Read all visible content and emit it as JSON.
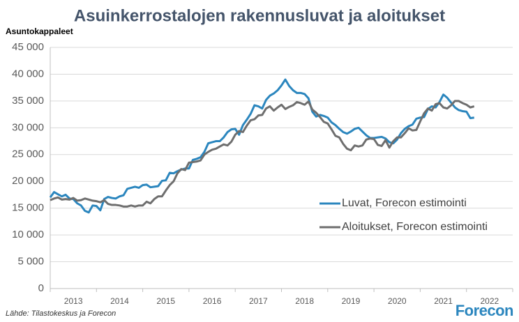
{
  "chart_data": {
    "type": "line",
    "title": "Asuinkerrostalojen rakennusluvat ja aloitukset",
    "y_label": "Asuntokappaleet",
    "source": "Lähde: Tilastokeskus ja Forecon",
    "logo": "Forecon",
    "categories": [
      null,
      null,
      null,
      null,
      null,
      null,
      "2013",
      null,
      null,
      null,
      null,
      null,
      null,
      null,
      null,
      null,
      null,
      null,
      "2014",
      null,
      null,
      null,
      null,
      null,
      null,
      null,
      null,
      null,
      null,
      null,
      "2015",
      null,
      null,
      null,
      null,
      null,
      null,
      null,
      null,
      null,
      null,
      null,
      "2016",
      null,
      null,
      null,
      null,
      null,
      null,
      null,
      null,
      null,
      null,
      null,
      "2017",
      null,
      null,
      null,
      null,
      null,
      null,
      null,
      null,
      null,
      null,
      null,
      "2018",
      null,
      null,
      null,
      null,
      null,
      null,
      null,
      null,
      null,
      null,
      null,
      "2019",
      null,
      null,
      null,
      null,
      null,
      null,
      null,
      null,
      null,
      null,
      null,
      "2020",
      null,
      null,
      null,
      null,
      null,
      null,
      null,
      null,
      null,
      null,
      null,
      "2021",
      null,
      null,
      null,
      null,
      null,
      null,
      null,
      null,
      null,
      null,
      null,
      "2022",
      null,
      null,
      null,
      null,
      null
    ],
    "series": [
      {
        "name": "Luvat, Forecon estimointi",
        "color": "#2b86be",
        "values": [
          17000,
          18000,
          17600,
          17200,
          17500,
          16800,
          16700,
          15900,
          15500,
          14500,
          14200,
          15500,
          15400,
          14600,
          16700,
          17100,
          16900,
          16800,
          17200,
          17400,
          18600,
          18800,
          19000,
          18800,
          19300,
          19400,
          18900,
          19000,
          19100,
          20100,
          20200,
          21600,
          21500,
          21900,
          22200,
          22400,
          22400,
          24000,
          24200,
          24500,
          25500,
          27100,
          27300,
          27500,
          27500,
          28200,
          29200,
          29700,
          29800,
          28700,
          30500,
          31500,
          32600,
          34200,
          34000,
          33600,
          35200,
          36000,
          36400,
          37000,
          37900,
          39000,
          37800,
          37000,
          36500,
          36500,
          36300,
          35500,
          33000,
          32100,
          32400,
          32200,
          31900,
          31000,
          30500,
          29800,
          29200,
          28900,
          29300,
          29800,
          30000,
          29300,
          28600,
          28100,
          28100,
          28200,
          28300,
          28000,
          27300,
          27100,
          27800,
          29000,
          29800,
          30300,
          30600,
          31700,
          31900,
          32000,
          33500,
          34000,
          33800,
          34800,
          36200,
          35600,
          34700,
          33800,
          33300,
          33100,
          33000,
          31800,
          31900,
          null,
          null,
          null,
          null,
          null,
          null,
          null,
          null,
          null
        ]
      },
      {
        "name": "Aloitukset, Forecon estimointi",
        "color": "#6e6e6e",
        "values": [
          16500,
          16800,
          17000,
          16600,
          16700,
          16600,
          16900,
          16400,
          16500,
          16800,
          16600,
          16400,
          16300,
          16100,
          16500,
          15800,
          15600,
          15600,
          15500,
          15300,
          15300,
          15500,
          15300,
          15500,
          15500,
          16200,
          15900,
          16700,
          17200,
          17200,
          18300,
          19300,
          20000,
          21500,
          22300,
          22100,
          23500,
          23600,
          23700,
          23900,
          25000,
          25500,
          25900,
          26100,
          26500,
          26900,
          26700,
          27400,
          28700,
          29400,
          29200,
          30400,
          31400,
          31600,
          32300,
          32400,
          33600,
          34000,
          33200,
          33800,
          34300,
          33500,
          33900,
          34200,
          34800,
          34600,
          34300,
          34900,
          33400,
          32800,
          32000,
          31100,
          30800,
          29700,
          28500,
          28200,
          27000,
          26100,
          25800,
          26700,
          26500,
          26700,
          27800,
          28000,
          27900,
          26800,
          26600,
          27700,
          26300,
          27500,
          28200,
          28200,
          29000,
          29900,
          29500,
          29600,
          31200,
          32700,
          33600,
          33200,
          34400,
          34600,
          33800,
          33600,
          34200,
          35000,
          35000,
          34600,
          34300,
          33800,
          34000,
          null,
          null,
          null,
          null,
          null,
          null,
          null,
          null,
          null
        ]
      }
    ],
    "ylim": [
      0,
      45000
    ],
    "yticks": [
      0,
      {
        "value": 5000,
        "label": "5 000"
      },
      {
        "value": 10000,
        "label": "10 000"
      },
      {
        "value": 15000,
        "label": "15 000"
      },
      {
        "value": 20000,
        "label": "20 000"
      },
      {
        "value": 25000,
        "label": "25 000"
      },
      {
        "value": 30000,
        "label": "30 000"
      },
      {
        "value": 35000,
        "label": "35 000"
      },
      {
        "value": 40000,
        "label": "40 000"
      },
      {
        "value": 45000,
        "label": "45 000"
      }
    ],
    "grid": true
  }
}
